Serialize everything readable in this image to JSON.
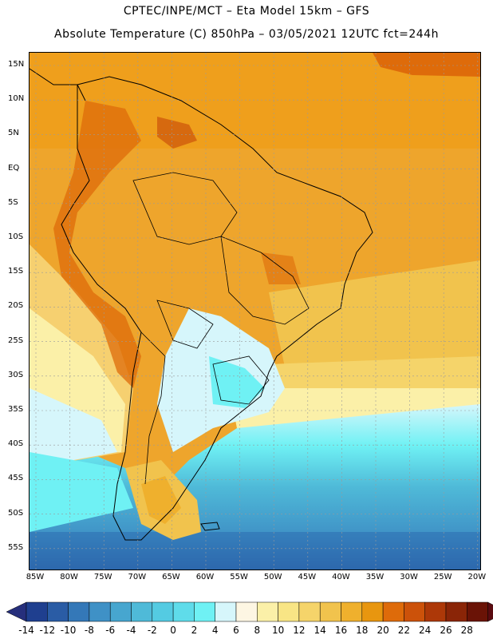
{
  "title_line1": "CPTEC/INPE/MCT –  Eta Model 15km – GFS",
  "title_line2": "Absolute Temperature (C) 850hPa – 03/05/2021 12UTC fct=244h",
  "lat_labels": [
    "15N",
    "10N",
    "5N",
    "EQ",
    "5S",
    "10S",
    "15S",
    "20S",
    "25S",
    "30S",
    "35S",
    "40S",
    "45S",
    "50S",
    "55S"
  ],
  "lon_labels": [
    "85W",
    "80W",
    "75W",
    "70W",
    "65W",
    "60W",
    "55W",
    "50W",
    "45W",
    "40W",
    "35W",
    "30W",
    "25W",
    "20W"
  ],
  "colorbar": {
    "labels": [
      "-14",
      "-12",
      "-10",
      "-8",
      "-6",
      "-4",
      "-2",
      "0",
      "2",
      "4",
      "6",
      "8",
      "10",
      "12",
      "14",
      "16",
      "18",
      "20",
      "22",
      "24",
      "26",
      "28"
    ],
    "colors": [
      "#1f3f8f",
      "#2a5ca5",
      "#3478b8",
      "#3f91c6",
      "#47a6cf",
      "#4fbad8",
      "#54cbe2",
      "#5fdcea",
      "#6ff1f4",
      "#d6f6fb",
      "#fdf6e3",
      "#fbf0a8",
      "#f8e585",
      "#f5d46a",
      "#f1c34d",
      "#efb02d",
      "#e8960f",
      "#de6b0a",
      "#cc520a",
      "#ad3808",
      "#8a2507",
      "#6a1306"
    ],
    "end_low": "#262f7c",
    "end_high": "#5a0b10"
  },
  "map": {
    "background_color": "#f0a21a",
    "ocean_warm": "#efb93a",
    "ocean_cool": "#f6d070",
    "cold_sea": "#4fbad8",
    "deep_cold": "#3478b8"
  }
}
